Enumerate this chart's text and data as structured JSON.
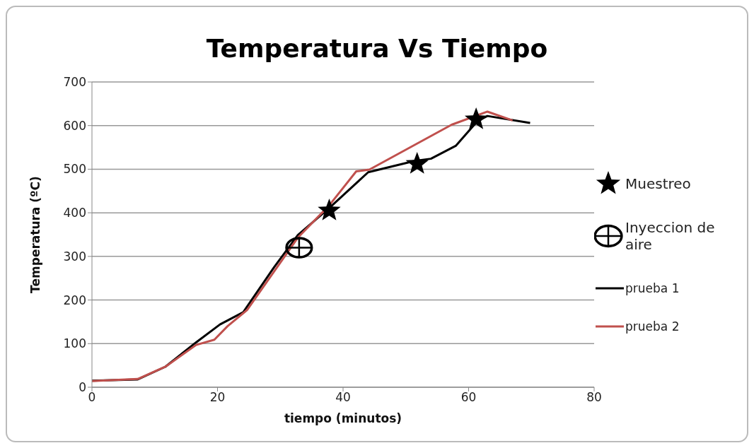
{
  "chart_data": {
    "type": "line",
    "title": "Temperatura Vs Tiempo",
    "xlabel": "tiempo (minutos)",
    "ylabel": "Temperatura (ºC)",
    "xlim": [
      0,
      80
    ],
    "xticks": [
      0,
      20,
      40,
      60,
      80
    ],
    "ylim": [
      0,
      700
    ],
    "yticks": [
      0,
      100,
      200,
      300,
      400,
      500,
      600,
      700
    ],
    "grid": "y",
    "legend": "right",
    "line_style": "solid",
    "series": [
      {
        "name": "Muestreo",
        "type": "scatter",
        "marker": "star",
        "color": "#000000",
        "x": [
          37.8,
          51.8,
          61.2
        ],
        "values": [
          405,
          512,
          614
        ]
      },
      {
        "name": "Inyeccion de aire",
        "type": "scatter",
        "marker": "circle",
        "color": "#000000",
        "x": [
          33
        ],
        "values": [
          320
        ]
      },
      {
        "name": "prueba 1",
        "marker": "none",
        "color": "#000000",
        "x": [
          0,
          7.3,
          11.7,
          16.6,
          20.4,
          24.1,
          29,
          32.8,
          37.8,
          44,
          51.4,
          54,
          58,
          61.4,
          63,
          69.8
        ],
        "values": [
          15,
          18,
          47,
          103,
          144,
          172,
          275,
          349,
          411,
          493,
          519,
          524,
          554,
          610,
          622,
          606
        ]
      },
      {
        "name": "prueba 2",
        "marker": "none",
        "color": "#c0504d",
        "x": [
          0,
          7.3,
          11.7,
          16.6,
          19.5,
          21.6,
          24.7,
          29,
          32.8,
          37.8,
          42.1,
          44.2,
          51.4,
          57.3,
          63,
          67
        ],
        "values": [
          14,
          19,
          47,
          97,
          109,
          140,
          177,
          265,
          343,
          417,
          495,
          499,
          null,
          602,
          632,
          612
        ]
      }
    ]
  }
}
